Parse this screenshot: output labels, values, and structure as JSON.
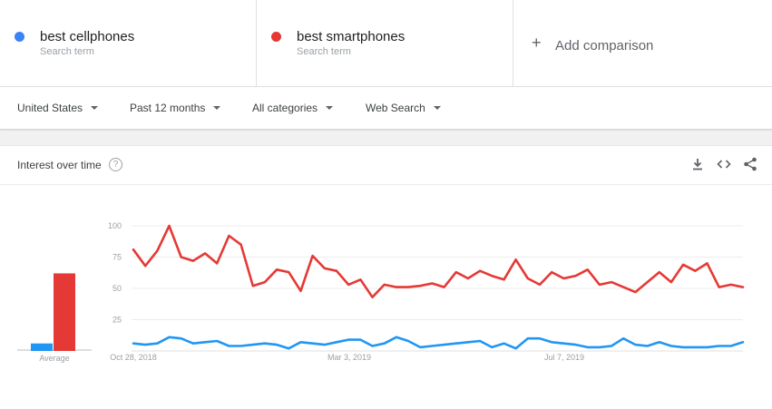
{
  "terms": [
    {
      "name": "best cellphones",
      "sub": "Search term",
      "color": "#3b82f6"
    },
    {
      "name": "best smartphones",
      "sub": "Search term",
      "color": "#e53935"
    }
  ],
  "add_comparison": {
    "label": "Add comparison",
    "icon": "plus-icon"
  },
  "filters": {
    "region": "United States",
    "time": "Past 12 months",
    "category": "All categories",
    "type": "Web Search"
  },
  "card": {
    "title": "Interest over time",
    "icons": [
      "help-icon",
      "download-icon",
      "embed-icon",
      "share-icon"
    ]
  },
  "chart_data": {
    "type": "line",
    "x_tick_labels": [
      "Oct 28, 2018",
      "Mar 3, 2019",
      "Jul 7, 2019"
    ],
    "y_ticks": [
      25,
      50,
      75,
      100
    ],
    "ylim": [
      0,
      100
    ],
    "grid": true,
    "series": [
      {
        "name": "best smartphones",
        "color": "#e53935",
        "values": [
          81,
          68,
          80,
          100,
          75,
          72,
          78,
          70,
          92,
          85,
          52,
          55,
          65,
          63,
          48,
          76,
          66,
          64,
          53,
          57,
          43,
          53,
          51,
          51,
          52,
          54,
          51,
          63,
          58,
          64,
          60,
          57,
          73,
          58,
          53,
          63,
          58,
          60,
          65,
          53,
          55,
          51,
          47,
          55,
          63,
          55,
          69,
          64,
          70,
          51,
          53,
          51
        ]
      },
      {
        "name": "best cellphones",
        "color": "#2196f3",
        "values": [
          6,
          5,
          6,
          11,
          10,
          6,
          7,
          8,
          4,
          4,
          5,
          6,
          5,
          2,
          7,
          6,
          5,
          7,
          9,
          9,
          4,
          6,
          11,
          8,
          3,
          4,
          5,
          6,
          7,
          8,
          3,
          6,
          2,
          10,
          10,
          7,
          6,
          5,
          3,
          3,
          4,
          10,
          5,
          4,
          7,
          4,
          3,
          3,
          3,
          4,
          4,
          7
        ]
      }
    ],
    "average": {
      "label": "Average",
      "bars": [
        {
          "name": "best cellphones",
          "value": 6,
          "color": "#2196f3"
        },
        {
          "name": "best smartphones",
          "value": 62,
          "color": "#e53935"
        }
      ]
    }
  }
}
